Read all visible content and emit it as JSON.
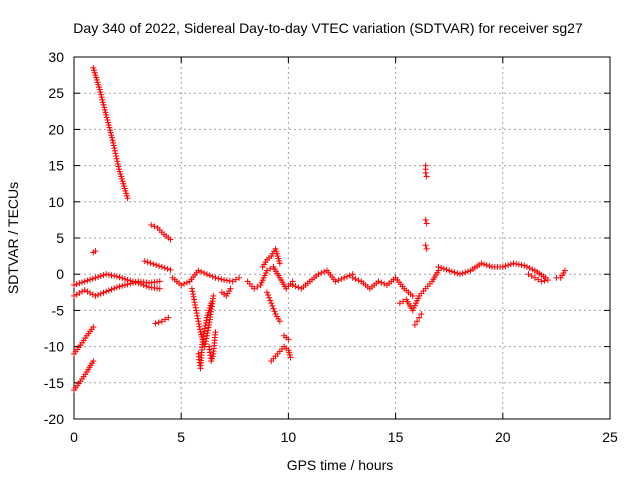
{
  "chart_data": {
    "type": "scatter",
    "title": "Day 340 of 2022, Sidereal Day-to-day VTEC variation (SDTVAR) for receiver sg27",
    "xlabel": "GPS time / hours",
    "ylabel": "SDTVAR / TECUs",
    "xlim": [
      0,
      25
    ],
    "ylim": [
      -20,
      30
    ],
    "xticks": [
      0,
      5,
      10,
      15,
      20,
      25
    ],
    "yticks": [
      -20,
      -15,
      -10,
      -5,
      0,
      5,
      10,
      15,
      20,
      25,
      30
    ],
    "grid": true,
    "marker": "+",
    "color": "#ff0000",
    "series": [
      {
        "name": "sg27",
        "segments": [
          {
            "x": [
              0.9,
              1.2,
              1.5,
              1.8,
              2.1,
              2.5
            ],
            "y": [
              28.5,
              25.5,
              22,
              18.5,
              14.5,
              10.5
            ]
          },
          {
            "x": [
              0.0,
              0.3,
              0.6,
              0.9
            ],
            "y": [
              -11,
              -9.8,
              -8.5,
              -7.3
            ]
          },
          {
            "x": [
              0.0,
              0.3,
              0.6,
              0.9
            ],
            "y": [
              -16,
              -14.8,
              -13.5,
              -12
            ]
          },
          {
            "x": [
              0.0,
              0.5,
              1.0,
              1.5,
              2.0,
              2.5,
              3.0,
              3.5,
              4.0
            ],
            "y": [
              -1.5,
              -1.0,
              -0.5,
              0.0,
              -0.3,
              -0.8,
              -1.2,
              -1.8,
              -2.0
            ]
          },
          {
            "x": [
              0.0,
              0.5,
              1.0,
              1.5,
              2.0,
              2.5,
              3.0,
              3.5,
              4.0
            ],
            "y": [
              -3.0,
              -2.2,
              -3.0,
              -2.4,
              -1.8,
              -1.4,
              -1.0,
              -1.2,
              -1.0
            ]
          },
          {
            "x": [
              0.9,
              1.0
            ],
            "y": [
              3.0,
              3.2
            ]
          },
          {
            "x": [
              3.6,
              3.9,
              4.2,
              4.5
            ],
            "y": [
              6.8,
              6.4,
              5.5,
              4.8
            ]
          },
          {
            "x": [
              3.3,
              3.7,
              4.1,
              4.5
            ],
            "y": [
              1.8,
              1.4,
              1.0,
              0.6
            ]
          },
          {
            "x": [
              3.8,
              4.1,
              4.4
            ],
            "y": [
              -6.8,
              -6.5,
              -6.0
            ]
          },
          {
            "x": [
              4.6,
              5.0,
              5.4,
              5.8,
              6.2,
              6.6,
              7.0,
              7.4,
              7.7
            ],
            "y": [
              -0.5,
              -1.5,
              -1.0,
              0.5,
              0.0,
              -0.5,
              -0.8,
              -1.0,
              -0.5
            ]
          },
          {
            "x": [
              5.5,
              5.7,
              5.9,
              6.1,
              6.3,
              6.5
            ],
            "y": [
              -2.0,
              -5.0,
              -8.0,
              -10.0,
              -7.0,
              -3.0
            ]
          },
          {
            "x": [
              5.8,
              5.9,
              6.0,
              6.2,
              6.4
            ],
            "y": [
              -11.0,
              -13.0,
              -9.0,
              -6.0,
              -4.0
            ]
          },
          {
            "x": [
              6.3,
              6.4,
              6.5,
              6.6
            ],
            "y": [
              -10.0,
              -12.0,
              -11.0,
              -8.0
            ]
          },
          {
            "x": [
              6.9,
              7.1,
              7.3
            ],
            "y": [
              -2.5,
              -3.0,
              -2.0
            ]
          },
          {
            "x": [
              8.1,
              8.4,
              8.7,
              9.0,
              9.3,
              9.6,
              9.9,
              10.2
            ],
            "y": [
              -1.0,
              -2.0,
              -1.5,
              0.5,
              1.0,
              -0.5,
              -2.0,
              -1.0
            ]
          },
          {
            "x": [
              8.8,
              9.0,
              9.2,
              9.4,
              9.6
            ],
            "y": [
              1.0,
              2.0,
              2.5,
              3.5,
              1.5
            ]
          },
          {
            "x": [
              9.0,
              9.2,
              9.4,
              9.6
            ],
            "y": [
              -2.5,
              -4.0,
              -5.5,
              -6.5
            ]
          },
          {
            "x": [
              9.2,
              9.5,
              9.8,
              10.0,
              10.1
            ],
            "y": [
              -12.0,
              -11.0,
              -10.0,
              -10.5,
              -11.5
            ]
          },
          {
            "x": [
              9.8,
              10.0
            ],
            "y": [
              -8.5,
              -9.0
            ]
          },
          {
            "x": [
              10.2,
              10.6,
              11.0,
              11.4,
              11.8,
              12.2,
              12.6,
              13.0
            ],
            "y": [
              -1.5,
              -2.0,
              -1.0,
              0.0,
              0.5,
              -1.0,
              -0.5,
              0.0
            ]
          },
          {
            "x": [
              13.0,
              13.4,
              13.8,
              14.2,
              14.6,
              15.0,
              15.4,
              15.8
            ],
            "y": [
              -0.5,
              -1.0,
              -2.0,
              -1.0,
              -1.5,
              -0.5,
              -2.0,
              -3.0
            ]
          },
          {
            "x": [
              15.2,
              15.5,
              15.8,
              16.1,
              16.4,
              16.7,
              17.0
            ],
            "y": [
              -4.0,
              -3.5,
              -5.0,
              -3.0,
              -2.0,
              -1.0,
              0.5
            ]
          },
          {
            "x": [
              15.9,
              16.0,
              16.1,
              16.2
            ],
            "y": [
              -7.0,
              -6.5,
              -6.0,
              -5.5
            ]
          },
          {
            "x": [
              16.4,
              16.4,
              16.45
            ],
            "y": [
              15.0,
              14.0,
              13.5
            ]
          },
          {
            "x": [
              16.4,
              16.45
            ],
            "y": [
              7.5,
              7.0
            ]
          },
          {
            "x": [
              16.4,
              16.45
            ],
            "y": [
              4.0,
              3.5
            ]
          },
          {
            "x": [
              17.0,
              17.5,
              18.0,
              18.5,
              19.0,
              19.5,
              20.0,
              20.5,
              21.0,
              21.5,
              22.0
            ],
            "y": [
              1.0,
              0.5,
              0.0,
              0.5,
              1.5,
              1.0,
              1.0,
              1.5,
              1.2,
              0.5,
              -0.5
            ]
          },
          {
            "x": [
              21.2,
              21.5,
              21.8,
              22.1
            ],
            "y": [
              0.0,
              -0.5,
              -1.0,
              -0.8
            ]
          },
          {
            "x": [
              22.5,
              22.7,
              22.9
            ],
            "y": [
              -0.5,
              -0.5,
              0.5
            ]
          }
        ]
      }
    ]
  }
}
